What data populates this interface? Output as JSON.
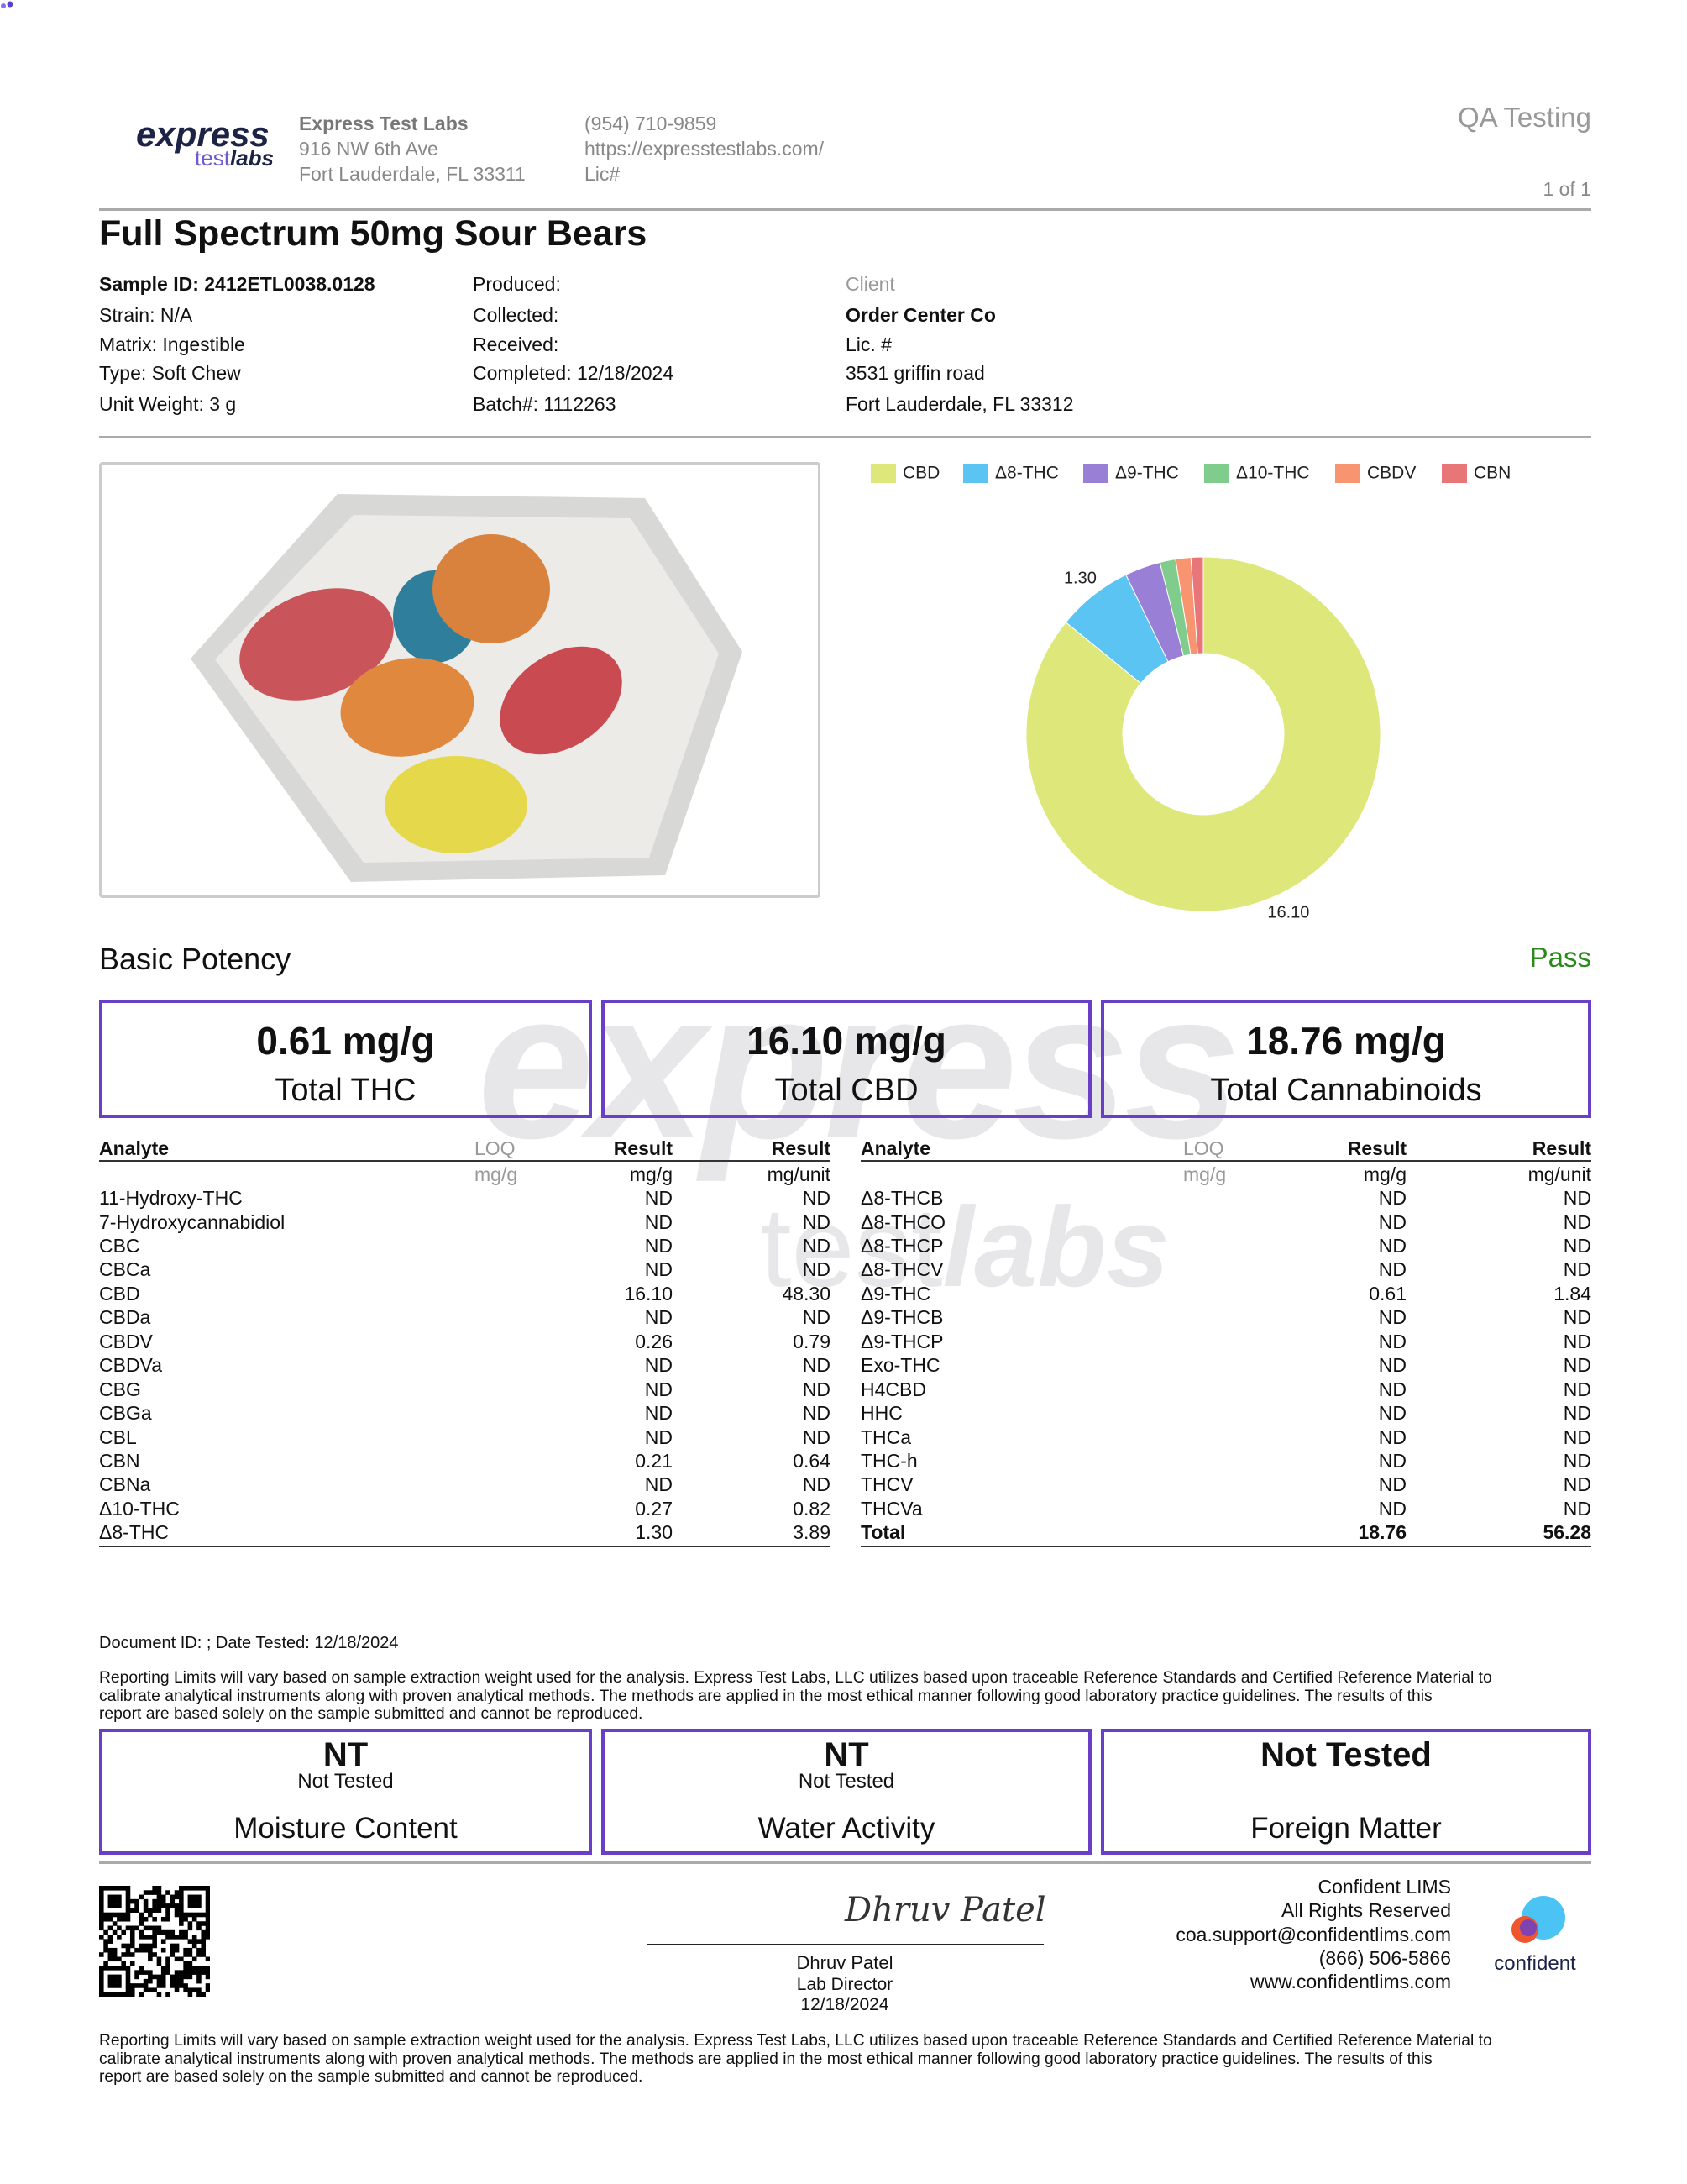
{
  "header": {
    "logo": {
      "brand": "express",
      "sub_a": "test",
      "sub_b": "labs"
    },
    "lab": {
      "name": "Express Test Labs",
      "address": "916 NW 6th Ave",
      "city": "Fort Lauderdale, FL 33311"
    },
    "contact": {
      "phone": "(954) 710-9859",
      "url": "https://expresstestlabs.com/",
      "license": "Lic#"
    },
    "section": "QA Testing",
    "page": "1 of 1"
  },
  "title": "Full Spectrum 50mg Sour Bears",
  "sample": {
    "left": [
      "Sample ID: 2412ETL0038.0128",
      "Strain: N/A",
      "Matrix: Ingestible",
      "Type: Soft Chew",
      "Unit Weight: 3 g"
    ],
    "middle": [
      "Produced:",
      "Collected:",
      "Received:",
      "Completed: 12/18/2024",
      "Batch#: 1112263"
    ],
    "client": {
      "label": "Client",
      "lines": [
        "Order Center Co",
        "Lic. #",
        "3531 griffin road",
        "Fort Lauderdale, FL 33312"
      ]
    }
  },
  "chart_data": {
    "type": "pie",
    "donut": true,
    "categories": [
      "CBD",
      "Δ8-THC",
      "Δ9-THC",
      "Δ10-THC",
      "CBDV",
      "CBN"
    ],
    "values": [
      16.1,
      1.3,
      0.61,
      0.27,
      0.26,
      0.21
    ],
    "value_labels": [
      "16.10",
      "1.30",
      null,
      null,
      null,
      null
    ],
    "colors": [
      "#dde77a",
      "#5cc4f2",
      "#9a7fd6",
      "#80cc8c",
      "#f89470",
      "#e87578"
    ],
    "legend": "top"
  },
  "potency": {
    "heading": "Basic Potency",
    "status": "Pass",
    "totals": [
      {
        "value": "0.61 mg/g",
        "label": "Total THC"
      },
      {
        "value": "16.10 mg/g",
        "label": "Total CBD"
      },
      {
        "value": "18.76 mg/g",
        "label": "Total Cannabinoids"
      }
    ]
  },
  "watermark": {
    "brand": "express",
    "sub_a": "test",
    "sub_b": "labs"
  },
  "tables": {
    "columns": {
      "analyte": "Analyte",
      "loq": "LOQ",
      "result": "Result",
      "result_unit": "Result"
    },
    "units": {
      "loq": "mg/g",
      "result": "mg/g",
      "result_unit": "mg/unit"
    },
    "left": [
      [
        "11-Hydroxy-THC",
        "ND",
        "ND"
      ],
      [
        "7-Hydroxycannabidiol",
        "ND",
        "ND"
      ],
      [
        "CBC",
        "ND",
        "ND"
      ],
      [
        "CBCa",
        "ND",
        "ND"
      ],
      [
        "CBD",
        "16.10",
        "48.30"
      ],
      [
        "CBDa",
        "ND",
        "ND"
      ],
      [
        "CBDV",
        "0.26",
        "0.79"
      ],
      [
        "CBDVa",
        "ND",
        "ND"
      ],
      [
        "CBG",
        "ND",
        "ND"
      ],
      [
        "CBGa",
        "ND",
        "ND"
      ],
      [
        "CBL",
        "ND",
        "ND"
      ],
      [
        "CBN",
        "0.21",
        "0.64"
      ],
      [
        "CBNa",
        "ND",
        "ND"
      ],
      [
        "Δ10-THC",
        "0.27",
        "0.82"
      ],
      [
        "Δ8-THC",
        "1.30",
        "3.89"
      ]
    ],
    "right": [
      [
        "Δ8-THCB",
        "ND",
        "ND"
      ],
      [
        "Δ8-THCO",
        "ND",
        "ND"
      ],
      [
        "Δ8-THCP",
        "ND",
        "ND"
      ],
      [
        "Δ8-THCV",
        "ND",
        "ND"
      ],
      [
        "Δ9-THC",
        "0.61",
        "1.84"
      ],
      [
        "Δ9-THCB",
        "ND",
        "ND"
      ],
      [
        "Δ9-THCP",
        "ND",
        "ND"
      ],
      [
        "Exo-THC",
        "ND",
        "ND"
      ],
      [
        "H4CBD",
        "ND",
        "ND"
      ],
      [
        "HHC",
        "ND",
        "ND"
      ],
      [
        "THCa",
        "ND",
        "ND"
      ],
      [
        "THC-h",
        "ND",
        "ND"
      ],
      [
        "THCV",
        "ND",
        "ND"
      ],
      [
        "THCVa",
        "ND",
        "ND"
      ],
      [
        "Total",
        "18.76",
        "56.28"
      ]
    ]
  },
  "footer": {
    "document_id": "Document ID: ; Date Tested: 12/18/2024",
    "disclaimer": [
      "Reporting Limits will vary based on sample extraction weight used for the analysis. Express Test Labs, LLC utilizes based upon traceable Reference Standards and Certified Reference Material to",
      "calibrate analytical instruments along with proven analytical methods. The methods are applied in the most ethical manner following good laboratory practice guidelines. The results of this",
      "report are based solely on the sample submitted and cannot be reproduced."
    ],
    "tests": [
      {
        "value": "NT",
        "note": "Not Tested",
        "label": "Moisture Content"
      },
      {
        "value": "NT",
        "note": "Not Tested",
        "label": "Water Activity"
      },
      {
        "value": "Not Tested",
        "label": "Foreign Matter"
      }
    ],
    "signature": {
      "name": "Dhruv Patel",
      "title": "Lab Director",
      "date": "12/18/2024"
    },
    "lims": [
      "Confident LIMS",
      "All Rights Reserved",
      "coa.support@confidentlims.com",
      "(866) 506-5866",
      "www.confidentlims.com"
    ],
    "confident_logo": "confident"
  }
}
